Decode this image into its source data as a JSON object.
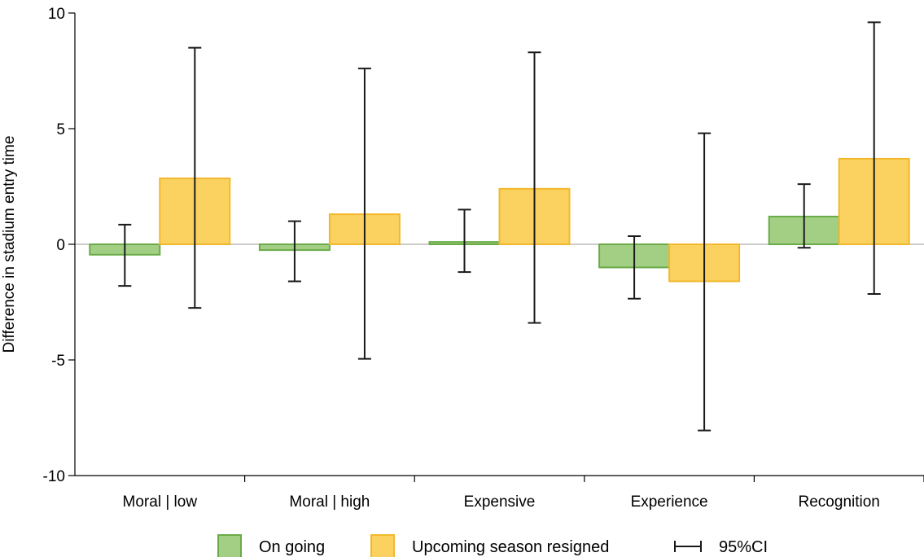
{
  "chart_data": {
    "type": "bar",
    "title": "",
    "xlabel": "",
    "ylabel": "Difference in stadium entry time",
    "ylim": [
      -10,
      10
    ],
    "yticks": [
      "10",
      "5",
      "0",
      "-5",
      "-10"
    ],
    "ytick_values": [
      10,
      5,
      0,
      -5,
      -10
    ],
    "grid": false,
    "legend_position": "bottom",
    "categories": [
      "Moral | low",
      "Moral | high",
      "Expensive",
      "Experience",
      "Recognition"
    ],
    "series": [
      {
        "name": "On going",
        "color": "#a3cf85",
        "edge_color": "#6aab47",
        "values": [
          -0.45,
          -0.25,
          0.1,
          -1.0,
          1.2
        ],
        "ci_low": [
          -1.8,
          -1.6,
          -1.2,
          -2.35,
          -0.15
        ],
        "ci_high": [
          0.85,
          1.0,
          1.5,
          0.35,
          2.6
        ]
      },
      {
        "name": "Upcoming season resigned",
        "color": "#fbd260",
        "edge_color": "#f2b82d",
        "values": [
          2.85,
          1.3,
          2.4,
          -1.6,
          3.7
        ],
        "ci_low": [
          -2.75,
          -4.95,
          -3.4,
          -8.05,
          -2.15
        ],
        "ci_high": [
          8.5,
          7.6,
          8.3,
          4.8,
          9.6
        ]
      }
    ],
    "ci_legend_label": "95%CI"
  }
}
